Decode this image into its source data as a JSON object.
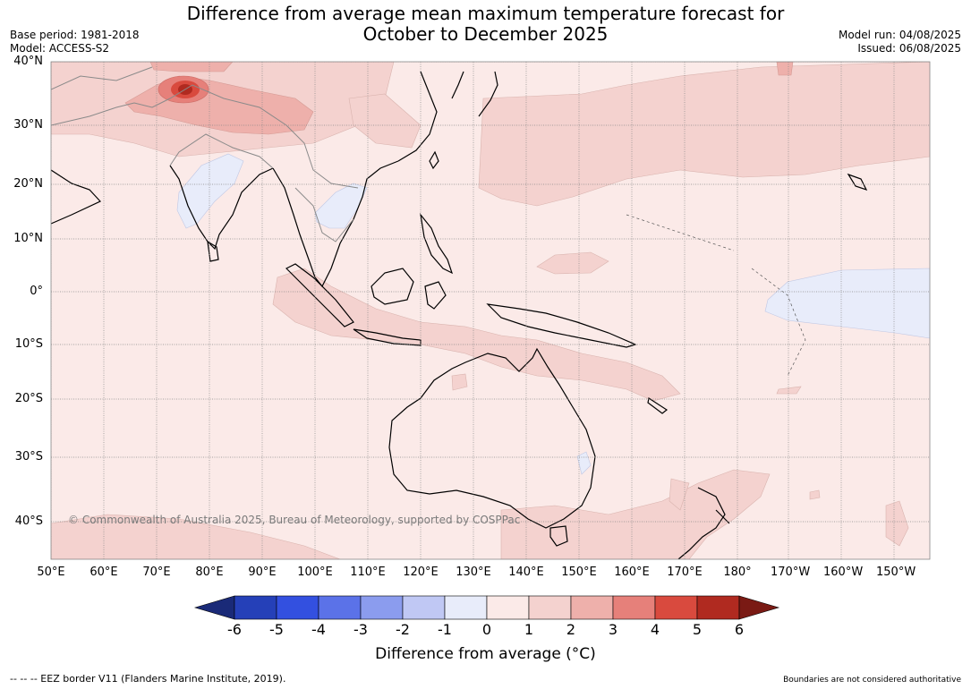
{
  "title_line1": "Difference from average mean maximum temperature forecast for",
  "title_line2": "October to December 2025",
  "base_period": "Base period: 1981-2018",
  "model": "Model: ACCESS-S2",
  "model_run": "Model run: 04/08/2025",
  "issued": "Issued: 06/08/2025",
  "lat_labels": [
    "40°N",
    "30°N",
    "20°N",
    "10°N",
    "0°",
    "10°S",
    "20°S",
    "30°S",
    "40°S"
  ],
  "lon_labels": [
    "50°E",
    "60°E",
    "70°E",
    "80°E",
    "90°E",
    "100°E",
    "110°E",
    "120°E",
    "130°E",
    "140°E",
    "150°E",
    "160°E",
    "170°E",
    "180°",
    "170°W",
    "160°W",
    "150°W"
  ],
  "copyright": "© Commonwealth of Australia 2025, Bureau of Meteorology, supported by COSPPac",
  "colorbar": {
    "ticks": [
      "-6",
      "-5",
      "-4",
      "-3",
      "-2",
      "-1",
      "0",
      "1",
      "2",
      "3",
      "4",
      "5",
      "6"
    ],
    "colors": [
      "#1a2a78",
      "#2540b8",
      "#3350e0",
      "#5b72e8",
      "#8b9cee",
      "#c0c8f4",
      "#e8ecfa",
      "#fbeae8",
      "#f4d2cf",
      "#eeb0ab",
      "#e6807a",
      "#d94a3e",
      "#b02a20",
      "#7a1a14"
    ],
    "label": "Difference from average (°C)"
  },
  "colors": {
    "base_fill": "#fbeae8",
    "warm1": "#f4d2cf",
    "warm2": "#eeb0ab",
    "warm3": "#e6807a",
    "warm4": "#d94a3e",
    "warm5": "#b02a20",
    "cool1": "#e8ecfa"
  },
  "footer_left": "--  --  -- EEZ border V11 (Flanders Marine Institute, 2019).",
  "footer_right": "Boundaries are not considered authoritative"
}
